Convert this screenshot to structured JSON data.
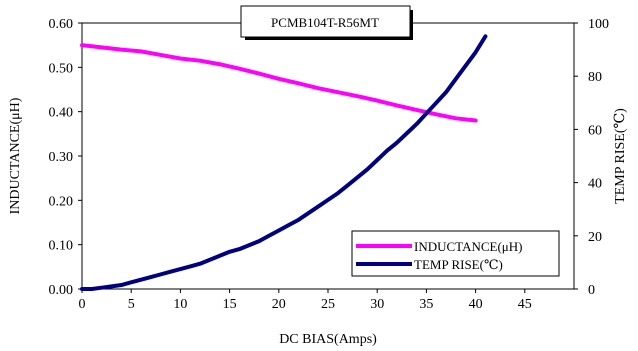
{
  "chart_data": {
    "type": "line",
    "title": "PCMB104T-R56MT",
    "xlabel": "DC BIAS(Amps)",
    "ylabel": "INDUCTANCE(μH)",
    "y2label": "TEMP RISE(℃)",
    "xlim": [
      0,
      50
    ],
    "ylim": [
      0,
      0.6
    ],
    "y2lim": [
      0,
      100
    ],
    "xticks": [
      "0",
      "5",
      "10",
      "15",
      "20",
      "25",
      "30",
      "35",
      "40",
      "45"
    ],
    "yticks": [
      "0.00",
      "0.10",
      "0.20",
      "0.30",
      "0.40",
      "0.50",
      "0.60"
    ],
    "y2ticks": [
      "0",
      "20",
      "40",
      "60",
      "80",
      "100"
    ],
    "grid": false,
    "legend_position": "bottom-right",
    "series": [
      {
        "name": "INDUCTANCE(μH)",
        "axis": "left",
        "color": "#ff00ff",
        "x": [
          0,
          2,
          4,
          6,
          8,
          10,
          12,
          14,
          16,
          18,
          20,
          22,
          24,
          26,
          28,
          30,
          32,
          34,
          36,
          38,
          40
        ],
        "y": [
          0.55,
          0.545,
          0.54,
          0.536,
          0.528,
          0.52,
          0.515,
          0.507,
          0.497,
          0.486,
          0.474,
          0.464,
          0.453,
          0.444,
          0.435,
          0.425,
          0.414,
          0.404,
          0.394,
          0.385,
          0.38
        ]
      },
      {
        "name": "TEMP RISE(℃)",
        "axis": "right",
        "color": "#000080",
        "x": [
          0,
          1,
          2,
          3,
          4,
          5,
          6,
          7,
          8,
          9,
          10,
          11,
          12,
          13,
          14,
          15,
          16,
          17,
          18,
          19,
          20,
          21,
          22,
          23,
          24,
          25,
          26,
          27,
          28,
          29,
          30,
          31,
          32,
          33,
          34,
          35,
          36,
          37,
          38,
          39,
          40,
          41
        ],
        "y": [
          0,
          0,
          0.5,
          1,
          1.5,
          2.5,
          3.5,
          4.5,
          5.5,
          6.5,
          7.5,
          8.5,
          9.5,
          11,
          12.5,
          14,
          15,
          16.5,
          18,
          20,
          22,
          24,
          26,
          28.5,
          31,
          33.5,
          36,
          39,
          42,
          45,
          48.5,
          52,
          55,
          58.5,
          62,
          66,
          70,
          74,
          79,
          84,
          89,
          95
        ]
      }
    ]
  }
}
